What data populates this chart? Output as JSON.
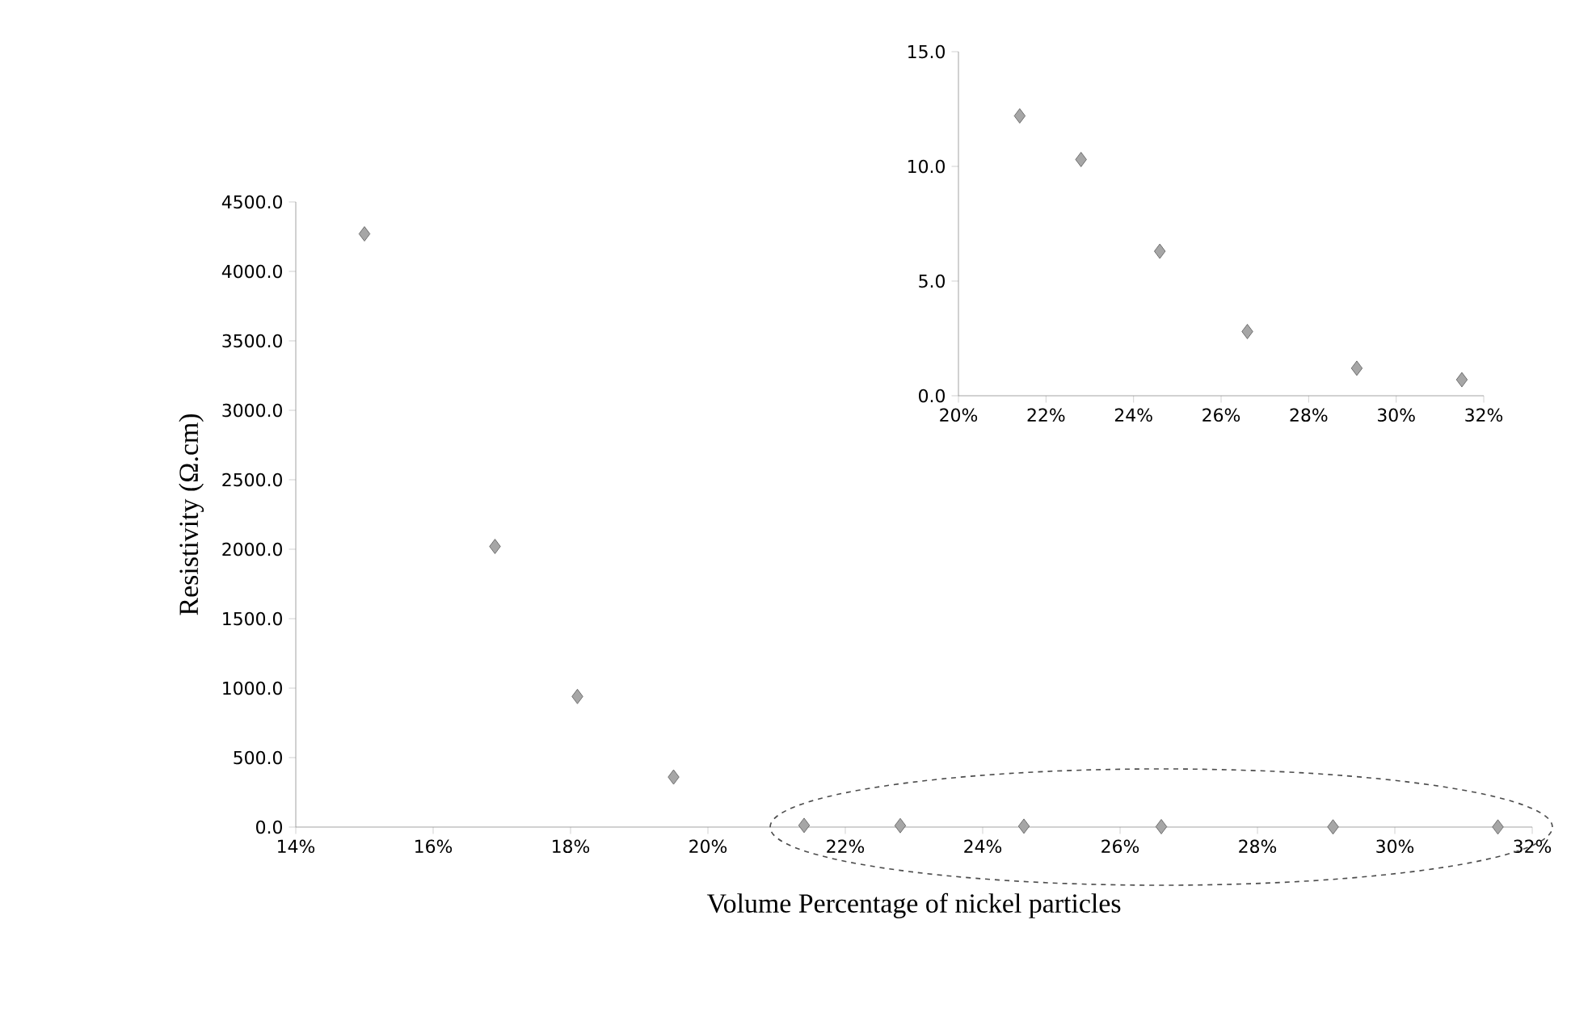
{
  "chart_data": [
    {
      "type": "scatter",
      "xlabel": "Volume Percentage of nickel particles",
      "ylabel": "Resistivity (Ω.cm)",
      "marker": "diamond",
      "color": "#a6a6a6",
      "x": [
        15,
        16.9,
        18.1,
        19.5,
        21.4,
        22.8,
        24.6,
        26.6,
        29.1,
        31.5
      ],
      "values": [
        4270,
        2020,
        940,
        360,
        12.2,
        10.3,
        6.3,
        2.8,
        1.2,
        0.7
      ],
      "xlim": [
        14,
        32
      ],
      "ylim": [
        0,
        4500
      ],
      "xticks": [
        {
          "value": 14,
          "label": "14%"
        },
        {
          "value": 16,
          "label": "16%"
        },
        {
          "value": 18,
          "label": "18%"
        },
        {
          "value": 20,
          "label": "20%"
        },
        {
          "value": 22,
          "label": "22%"
        },
        {
          "value": 24,
          "label": "24%"
        },
        {
          "value": 26,
          "label": "26%"
        },
        {
          "value": 28,
          "label": "28%"
        },
        {
          "value": 30,
          "label": "30%"
        },
        {
          "value": 32,
          "label": "32%"
        }
      ],
      "yticks": [
        {
          "value": 0,
          "label": "0.0"
        },
        {
          "value": 500,
          "label": "500.0"
        },
        {
          "value": 1000,
          "label": "1000.0"
        },
        {
          "value": 1500,
          "label": "1500.0"
        },
        {
          "value": 2000,
          "label": "2000.0"
        },
        {
          "value": 2500,
          "label": "2500.0"
        },
        {
          "value": 3000,
          "label": "3000.0"
        },
        {
          "value": 3500,
          "label": "3500.0"
        },
        {
          "value": 4000,
          "label": "4000.0"
        },
        {
          "value": 4500,
          "label": "4500.0"
        }
      ]
    },
    {
      "type": "scatter",
      "marker": "diamond",
      "color": "#a6a6a6",
      "x": [
        21.4,
        22.8,
        24.6,
        26.6,
        29.1,
        31.5
      ],
      "values": [
        12.2,
        10.3,
        6.3,
        2.8,
        1.2,
        0.7
      ],
      "xlim": [
        20,
        32
      ],
      "ylim": [
        0,
        15
      ],
      "xticks": [
        {
          "value": 20,
          "label": "20%"
        },
        {
          "value": 22,
          "label": "22%"
        },
        {
          "value": 24,
          "label": "24%"
        },
        {
          "value": 26,
          "label": "26%"
        },
        {
          "value": 28,
          "label": "28%"
        },
        {
          "value": 30,
          "label": "30%"
        },
        {
          "value": 32,
          "label": "32%"
        }
      ],
      "yticks": [
        {
          "value": 0,
          "label": "0.0"
        },
        {
          "value": 5,
          "label": "5.0"
        },
        {
          "value": 10,
          "label": "10.0"
        },
        {
          "value": 15,
          "label": "15.0"
        }
      ]
    }
  ]
}
